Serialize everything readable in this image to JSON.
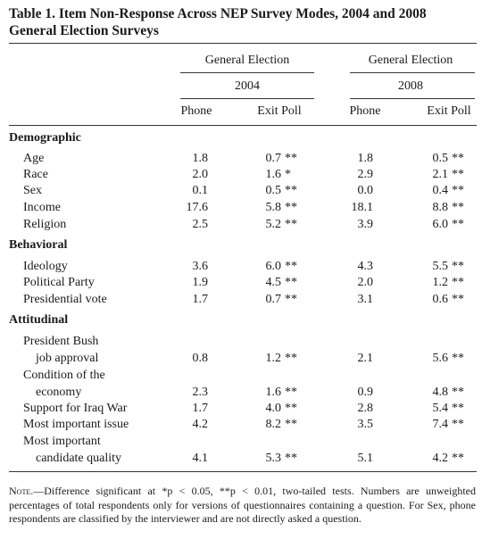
{
  "title": {
    "line1": "Table 1.  Item Non-Response Across NEP Survey Modes, 2004 and 2008",
    "line2": "General Election Surveys"
  },
  "groups": [
    {
      "label": "General Election",
      "year": "2004",
      "col1": "Phone",
      "col2": "Exit Poll"
    },
    {
      "label": "General Election",
      "year": "2008",
      "col1": "Phone",
      "col2": "Exit Poll"
    }
  ],
  "sections": [
    {
      "name": "Demographic",
      "rows": [
        {
          "label": [
            "Age"
          ],
          "v": [
            "1.8",
            "0.7",
            "1.8",
            "0.5"
          ],
          "s": [
            "",
            "**",
            "",
            "**"
          ]
        },
        {
          "label": [
            "Race"
          ],
          "v": [
            "2.0",
            "1.6",
            "2.9",
            "2.1"
          ],
          "s": [
            "",
            "*",
            "",
            "**"
          ]
        },
        {
          "label": [
            "Sex"
          ],
          "v": [
            "0.1",
            "0.5",
            "0.0",
            "0.4"
          ],
          "s": [
            "",
            "**",
            "",
            "**"
          ]
        },
        {
          "label": [
            "Income"
          ],
          "v": [
            "17.6",
            "5.8",
            "18.1",
            "8.8"
          ],
          "s": [
            "",
            "**",
            "",
            "**"
          ]
        },
        {
          "label": [
            "Religion"
          ],
          "v": [
            "2.5",
            "5.2",
            "3.9",
            "6.0"
          ],
          "s": [
            "",
            "**",
            "",
            "**"
          ]
        }
      ]
    },
    {
      "name": "Behavioral",
      "rows": [
        {
          "label": [
            "Ideology"
          ],
          "v": [
            "3.6",
            "6.0",
            "4.3",
            "5.5"
          ],
          "s": [
            "",
            "**",
            "",
            "**"
          ]
        },
        {
          "label": [
            "Political Party"
          ],
          "v": [
            "1.9",
            "4.5",
            "2.0",
            "1.2"
          ],
          "s": [
            "",
            "**",
            "",
            "**"
          ]
        },
        {
          "label": [
            "Presidential vote"
          ],
          "v": [
            "1.7",
            "0.7",
            "3.1",
            "0.6"
          ],
          "s": [
            "",
            "**",
            "",
            "**"
          ]
        }
      ]
    },
    {
      "name": "Attitudinal",
      "rows": [
        {
          "label": [
            "President Bush",
            "job approval"
          ],
          "v": [
            "0.8",
            "1.2",
            "2.1",
            "5.6"
          ],
          "s": [
            "",
            "**",
            "",
            "**"
          ]
        },
        {
          "label": [
            "Condition of the",
            "economy"
          ],
          "v": [
            "2.3",
            "1.6",
            "0.9",
            "4.8"
          ],
          "s": [
            "",
            "**",
            "",
            "**"
          ]
        },
        {
          "label": [
            "Support for Iraq War"
          ],
          "v": [
            "1.7",
            "4.0",
            "2.8",
            "5.4"
          ],
          "s": [
            "",
            "**",
            "",
            "**"
          ]
        },
        {
          "label": [
            "Most important issue"
          ],
          "v": [
            "4.2",
            "8.2",
            "3.5",
            "7.4"
          ],
          "s": [
            "",
            "**",
            "",
            "**"
          ]
        },
        {
          "label": [
            "Most important",
            "candidate quality"
          ],
          "v": [
            "4.1",
            "5.3",
            "5.1",
            "4.2"
          ],
          "s": [
            "",
            "**",
            "",
            "**"
          ]
        }
      ]
    }
  ],
  "note": {
    "lead": "Note.",
    "text": "—Difference significant at *p < 0.05, **p < 0.01, two-tailed tests. Numbers are unweighted percentages of total respondents only for versions of questionnaires containing a question. For Sex, phone respondents are classified by the interviewer and are not directly asked a question."
  }
}
